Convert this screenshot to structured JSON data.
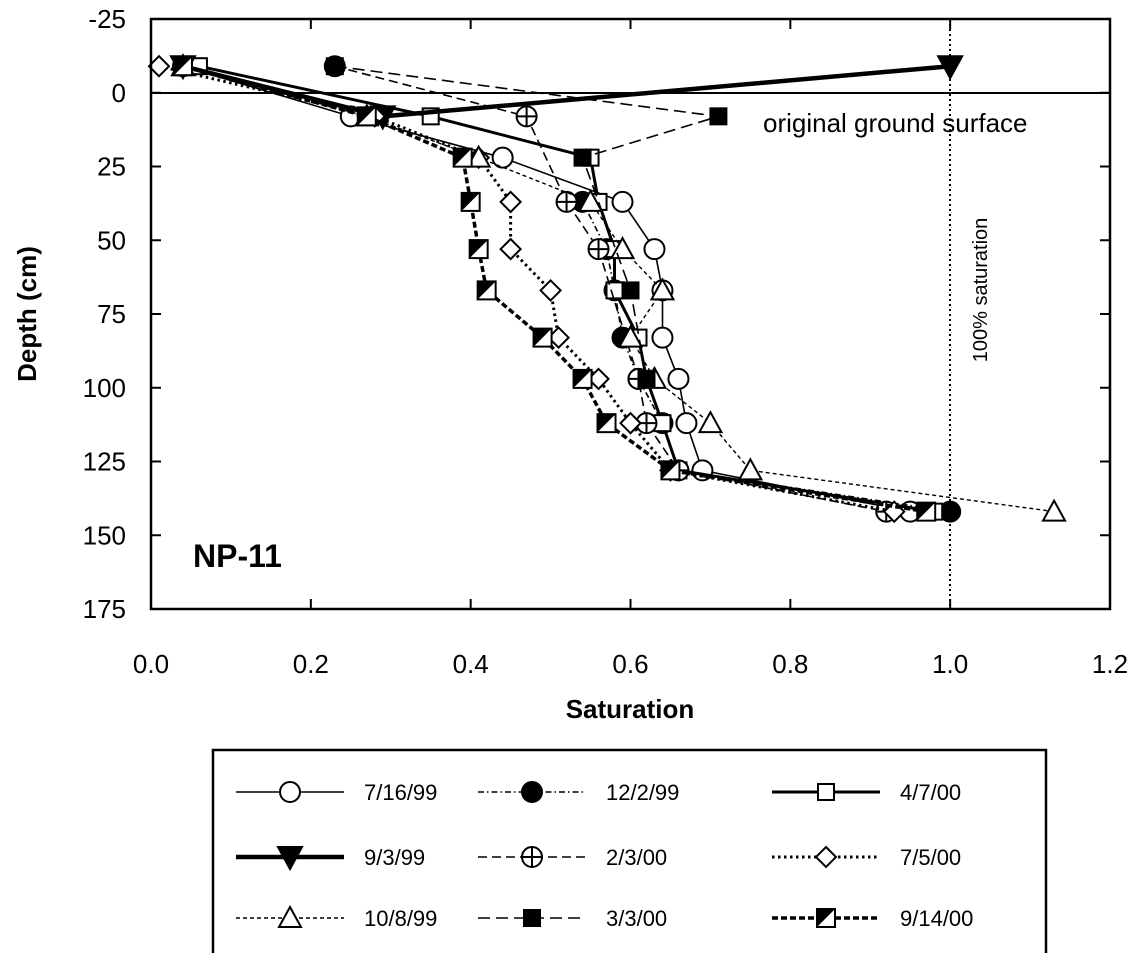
{
  "chart_data": {
    "type": "line",
    "title": "",
    "xlabel": "Saturation",
    "ylabel": "Depth (cm)",
    "xlim": [
      0.0,
      1.2
    ],
    "ylim": [
      -25,
      175
    ],
    "y_inverted": true,
    "xticks": [
      "0.0",
      "0.2",
      "0.4",
      "0.6",
      "0.8",
      "1.0",
      "1.2"
    ],
    "yticks": [
      "-25",
      "0",
      "25",
      "50",
      "75",
      "100",
      "125",
      "150",
      "175"
    ],
    "grid": false,
    "legend_position": "bottom",
    "annotations": {
      "ground_surface": "original ground surface",
      "saturation_line": "100% saturation",
      "site": "NP-11"
    },
    "series": [
      {
        "name": "7/16/99",
        "marker": "circle-open",
        "line": "solid",
        "x": [
          0.04,
          0.25,
          0.44,
          0.59,
          0.63,
          0.64,
          0.64,
          0.66,
          0.67,
          0.69,
          0.95
        ],
        "y": [
          -9,
          8,
          22,
          37,
          53,
          67,
          83,
          97,
          112,
          128,
          142
        ]
      },
      {
        "name": "12/2/99",
        "marker": "circle-filled",
        "line": "dashdot",
        "x": [
          0.54,
          0.57,
          0.58,
          0.59,
          0.61,
          0.64,
          0.66,
          1.0
        ],
        "y": [
          37,
          53,
          67,
          83,
          97,
          112,
          128,
          142
        ]
      },
      {
        "name": "4/7/00",
        "marker": "square-open",
        "line": "solid-thick",
        "x": [
          0.06,
          0.35,
          0.55,
          0.56,
          0.58,
          0.58,
          0.61,
          0.62,
          0.64,
          0.66,
          0.98
        ],
        "y": [
          -9,
          8,
          22,
          37,
          53,
          67,
          83,
          97,
          112,
          128,
          142
        ]
      },
      {
        "name": "9/3/99",
        "marker": "triangle-down-filled",
        "line": "solid-heavy",
        "x": [
          0.04,
          0.29,
          1.0
        ],
        "y": [
          -9,
          8,
          -9
        ]
      },
      {
        "name": "2/3/00",
        "marker": "circle-cross",
        "line": "dashed",
        "x": [
          0.23,
          0.47,
          0.52,
          0.56,
          0.61,
          0.62,
          0.66,
          0.92
        ],
        "y": [
          -9,
          8,
          37,
          53,
          97,
          112,
          128,
          142
        ]
      },
      {
        "name": "7/5/00",
        "marker": "diamond-open",
        "line": "dotted",
        "x": [
          0.01,
          0.28,
          0.41,
          0.45,
          0.45,
          0.5,
          0.51,
          0.56,
          0.6,
          0.65,
          0.93
        ],
        "y": [
          -9,
          8,
          22,
          37,
          53,
          67,
          83,
          97,
          112,
          128,
          142
        ]
      },
      {
        "name": "10/8/99",
        "marker": "triangle-up-open",
        "line": "short-dashed",
        "x": [
          0.04,
          0.27,
          0.41,
          0.55,
          0.59,
          0.64,
          0.6,
          0.63,
          0.7,
          0.75,
          1.13
        ],
        "y": [
          -9,
          8,
          22,
          37,
          53,
          67,
          83,
          97,
          112,
          128,
          142
        ]
      },
      {
        "name": "3/3/00",
        "marker": "square-filled",
        "line": "long-dashed",
        "x": [
          0.23,
          0.71,
          0.54,
          0.6,
          0.62
        ],
        "y": [
          -9,
          8,
          22,
          67,
          97
        ]
      },
      {
        "name": "9/14/00",
        "marker": "square-half",
        "line": "heavy-dashed",
        "x": [
          0.04,
          0.27,
          0.39,
          0.4,
          0.41,
          0.42,
          0.49,
          0.54,
          0.57,
          0.65,
          0.97
        ],
        "y": [
          -9,
          8,
          22,
          37,
          53,
          67,
          83,
          97,
          112,
          128,
          142
        ]
      }
    ]
  }
}
